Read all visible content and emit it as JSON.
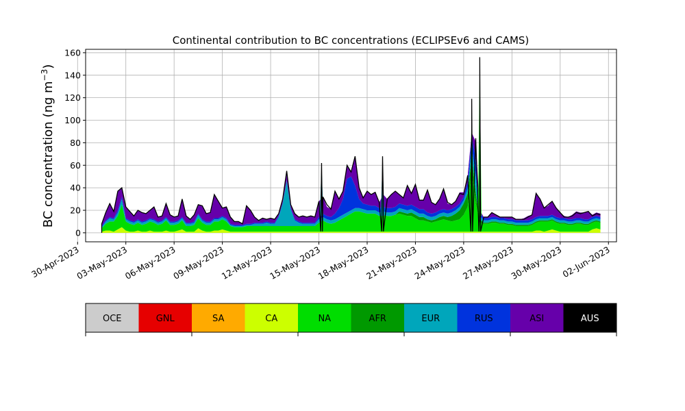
{
  "chart_data": {
    "type": "area",
    "title": "Continental contribution to BC concentrations (ECLIPSEv6 and CAMS)",
    "ylabel_main": "BC concentration (ng m",
    "ylabel_sup": "−3",
    "ylabel_close": ")",
    "xlabel": "",
    "ylim": [
      -8,
      163
    ],
    "xlim": [
      "2023-04-30T12:00",
      "2023-06-02T12:00"
    ],
    "yticks": [
      0,
      20,
      40,
      60,
      80,
      100,
      120,
      140,
      160
    ],
    "xticks": [
      {
        "date": "2023-04-30",
        "label": "30-Apr-2023"
      },
      {
        "date": "2023-05-03",
        "label": "03-May-2023"
      },
      {
        "date": "2023-05-06",
        "label": "06-May-2023"
      },
      {
        "date": "2023-05-09",
        "label": "09-May-2023"
      },
      {
        "date": "2023-05-12",
        "label": "12-May-2023"
      },
      {
        "date": "2023-05-15",
        "label": "15-May-2023"
      },
      {
        "date": "2023-05-18",
        "label": "18-May-2023"
      },
      {
        "date": "2023-05-21",
        "label": "21-May-2023"
      },
      {
        "date": "2023-05-24",
        "label": "24-May-2023"
      },
      {
        "date": "2023-05-27",
        "label": "27-May-2023"
      },
      {
        "date": "2023-05-30",
        "label": "30-May-2023"
      },
      {
        "date": "2023-06-02",
        "label": "02-Jun-2023"
      }
    ],
    "grid": true,
    "legend_position": "below",
    "series_order": [
      "CA",
      "NA",
      "AFR",
      "EUR",
      "RUS",
      "ASI"
    ],
    "total_outline_color": "#000000",
    "x": [
      "2023-05-01T12:00",
      "2023-05-01T18:00",
      "2023-05-02T00:00",
      "2023-05-02T06:00",
      "2023-05-02T12:00",
      "2023-05-02T18:00",
      "2023-05-03T00:00",
      "2023-05-03T06:00",
      "2023-05-03T12:00",
      "2023-05-03T18:00",
      "2023-05-04T00:00",
      "2023-05-04T06:00",
      "2023-05-04T12:00",
      "2023-05-04T18:00",
      "2023-05-05T00:00",
      "2023-05-05T06:00",
      "2023-05-05T12:00",
      "2023-05-05T18:00",
      "2023-05-06T00:00",
      "2023-05-06T06:00",
      "2023-05-06T12:00",
      "2023-05-06T18:00",
      "2023-05-07T00:00",
      "2023-05-07T06:00",
      "2023-05-07T12:00",
      "2023-05-07T18:00",
      "2023-05-08T00:00",
      "2023-05-08T06:00",
      "2023-05-08T12:00",
      "2023-05-08T18:00",
      "2023-05-09T00:00",
      "2023-05-09T06:00",
      "2023-05-09T12:00",
      "2023-05-09T18:00",
      "2023-05-10T00:00",
      "2023-05-10T06:00",
      "2023-05-10T12:00",
      "2023-05-10T18:00",
      "2023-05-11T00:00",
      "2023-05-11T06:00",
      "2023-05-11T12:00",
      "2023-05-11T18:00",
      "2023-05-12T00:00",
      "2023-05-12T06:00",
      "2023-05-12T12:00",
      "2023-05-12T18:00",
      "2023-05-13T00:00",
      "2023-05-13T06:00",
      "2023-05-13T12:00",
      "2023-05-13T18:00",
      "2023-05-14T00:00",
      "2023-05-14T06:00",
      "2023-05-14T12:00",
      "2023-05-14T18:00",
      "2023-05-15T00:00",
      "2023-05-15T06:00",
      "2023-05-15T12:00",
      "2023-05-15T18:00",
      "2023-05-16T00:00",
      "2023-05-16T06:00",
      "2023-05-16T12:00",
      "2023-05-16T18:00",
      "2023-05-17T00:00",
      "2023-05-17T06:00",
      "2023-05-17T12:00",
      "2023-05-17T18:00",
      "2023-05-18T00:00",
      "2023-05-18T06:00",
      "2023-05-18T12:00",
      "2023-05-18T18:00",
      "2023-05-19T00:00",
      "2023-05-19T06:00",
      "2023-05-19T12:00",
      "2023-05-19T18:00",
      "2023-05-20T00:00",
      "2023-05-20T06:00",
      "2023-05-20T12:00",
      "2023-05-20T18:00",
      "2023-05-21T00:00",
      "2023-05-21T06:00",
      "2023-05-21T12:00",
      "2023-05-21T18:00",
      "2023-05-22T00:00",
      "2023-05-22T06:00",
      "2023-05-22T12:00",
      "2023-05-22T18:00",
      "2023-05-23T00:00",
      "2023-05-23T06:00",
      "2023-05-23T12:00",
      "2023-05-23T18:00",
      "2023-05-24T00:00",
      "2023-05-24T06:00",
      "2023-05-24T12:00",
      "2023-05-24T18:00",
      "2023-05-25T00:00",
      "2023-05-25T06:00",
      "2023-05-25T12:00",
      "2023-05-25T18:00",
      "2023-05-26T00:00",
      "2023-05-26T06:00",
      "2023-05-26T12:00",
      "2023-05-26T18:00",
      "2023-05-27T00:00",
      "2023-05-27T06:00",
      "2023-05-27T12:00",
      "2023-05-27T18:00",
      "2023-05-28T00:00",
      "2023-05-28T06:00",
      "2023-05-28T12:00",
      "2023-05-28T18:00",
      "2023-05-29T00:00",
      "2023-05-29T06:00",
      "2023-05-29T12:00",
      "2023-05-29T18:00",
      "2023-05-30T00:00",
      "2023-05-30T06:00",
      "2023-05-30T12:00",
      "2023-05-30T18:00",
      "2023-05-31T00:00",
      "2023-05-31T06:00",
      "2023-05-31T12:00",
      "2023-05-31T18:00",
      "2023-06-01T00:00",
      "2023-06-01T06:00",
      "2023-06-01T12:00"
    ],
    "series": [
      {
        "name": "CA",
        "color": "#ccff00",
        "values": [
          1,
          2,
          2,
          1,
          3,
          5,
          2,
          1,
          1,
          2,
          1,
          1,
          2,
          1,
          1,
          1,
          2,
          1,
          1,
          2,
          3,
          1,
          1,
          1,
          4,
          2,
          1,
          1,
          2,
          2,
          3,
          2,
          1,
          1,
          1,
          1,
          1,
          1,
          1,
          1,
          1,
          1,
          1,
          1,
          1,
          1,
          1,
          1,
          1,
          1,
          1,
          1,
          1,
          1,
          1,
          1,
          1,
          1,
          1,
          1,
          1,
          1,
          1,
          1,
          1,
          1,
          1,
          1,
          1,
          1,
          1,
          1,
          1,
          1,
          1,
          1,
          1,
          1,
          1,
          1,
          1,
          1,
          1,
          1,
          1,
          1,
          1,
          1,
          1,
          1,
          1,
          1,
          1,
          1,
          1,
          1,
          1,
          1,
          1,
          1,
          1,
          1,
          1,
          1,
          1,
          1,
          1,
          1,
          2,
          2,
          1,
          2,
          3,
          2,
          1,
          1,
          1,
          1,
          1,
          1,
          1,
          1,
          3,
          4,
          3
        ]
      },
      {
        "name": "NA",
        "color": "#00dd00",
        "values": [
          3,
          6,
          8,
          9,
          12,
          20,
          8,
          7,
          6,
          7,
          6,
          7,
          8,
          8,
          6,
          7,
          9,
          6,
          6,
          6,
          8,
          5,
          5,
          6,
          9,
          7,
          6,
          6,
          8,
          8,
          9,
          8,
          5,
          4,
          4,
          4,
          5,
          5,
          5,
          5,
          5,
          5,
          5,
          5,
          5,
          5,
          5,
          5,
          5,
          5,
          5,
          5,
          5,
          5,
          8,
          10,
          8,
          7,
          8,
          10,
          12,
          14,
          16,
          18,
          18,
          17,
          16,
          16,
          16,
          14,
          15,
          14,
          14,
          15,
          16,
          15,
          14,
          14,
          12,
          10,
          10,
          9,
          8,
          9,
          10,
          11,
          10,
          9,
          10,
          11,
          15,
          22,
          55,
          25,
          8,
          7,
          7,
          8,
          8,
          7,
          7,
          6,
          6,
          5,
          5,
          5,
          5,
          6,
          7,
          8,
          9,
          8,
          8,
          7,
          7,
          7,
          6,
          6,
          7,
          7,
          6,
          6,
          6,
          6,
          6
        ]
      },
      {
        "name": "AFR",
        "color": "#009900",
        "values": [
          0,
          0,
          0,
          0,
          0,
          0,
          0,
          0,
          0,
          0,
          0,
          0,
          0,
          0,
          0,
          0,
          0,
          0,
          0,
          0,
          0,
          0,
          0,
          0,
          0,
          0,
          0,
          0,
          0,
          0,
          0,
          0,
          0,
          0,
          0,
          0,
          0,
          0,
          0,
          0,
          0,
          0,
          0,
          0,
          0,
          0,
          0,
          0,
          0,
          0,
          0,
          0,
          0,
          0,
          0,
          0,
          0,
          0,
          0,
          0,
          0,
          0,
          0,
          0,
          0,
          0,
          0,
          0,
          0,
          0,
          0,
          0,
          0,
          0,
          2,
          2,
          2,
          3,
          3,
          3,
          3,
          2,
          2,
          2,
          3,
          3,
          3,
          5,
          6,
          8,
          10,
          12,
          12,
          10,
          3,
          1,
          1,
          1,
          1,
          1,
          1,
          1,
          1,
          1,
          1,
          1,
          1,
          1,
          1,
          1,
          1,
          1,
          1,
          1,
          1,
          1,
          1,
          1,
          1,
          1,
          1,
          1,
          1,
          1,
          1
        ]
      },
      {
        "name": "EUR",
        "color": "#00a6bb",
        "values": [
          1,
          2,
          3,
          2,
          3,
          5,
          2,
          2,
          2,
          2,
          2,
          2,
          2,
          2,
          2,
          2,
          2,
          2,
          2,
          2,
          2,
          2,
          2,
          2,
          3,
          2,
          2,
          2,
          2,
          2,
          2,
          2,
          1,
          1,
          1,
          1,
          1,
          1,
          2,
          2,
          2,
          3,
          2,
          2,
          8,
          20,
          40,
          15,
          5,
          3,
          2,
          2,
          2,
          2,
          3,
          3,
          3,
          3,
          3,
          3,
          3,
          3,
          3,
          3,
          3,
          3,
          3,
          3,
          3,
          3,
          3,
          3,
          3,
          3,
          3,
          3,
          3,
          3,
          3,
          3,
          3,
          3,
          3,
          3,
          3,
          3,
          3,
          3,
          3,
          3,
          3,
          5,
          8,
          15,
          3,
          2,
          2,
          2,
          2,
          2,
          2,
          2,
          2,
          2,
          2,
          2,
          2,
          2,
          2,
          2,
          2,
          2,
          2,
          2,
          2,
          2,
          2,
          2,
          2,
          2,
          2,
          2,
          2,
          2,
          2
        ]
      },
      {
        "name": "RUS",
        "color": "#0033dd",
        "values": [
          1,
          1,
          1,
          1,
          2,
          2,
          1,
          1,
          1,
          1,
          1,
          1,
          1,
          1,
          1,
          1,
          1,
          1,
          1,
          1,
          1,
          1,
          1,
          1,
          1,
          1,
          1,
          1,
          1,
          1,
          1,
          1,
          1,
          1,
          1,
          1,
          1,
          1,
          1,
          1,
          1,
          1,
          1,
          1,
          1,
          1,
          1,
          1,
          1,
          1,
          1,
          1,
          1,
          1,
          2,
          3,
          3,
          3,
          5,
          8,
          14,
          30,
          30,
          20,
          8,
          5,
          5,
          4,
          4,
          4,
          4,
          4,
          4,
          4,
          4,
          4,
          4,
          4,
          4,
          4,
          4,
          3,
          3,
          3,
          3,
          3,
          3,
          3,
          3,
          3,
          3,
          5,
          10,
          15,
          3,
          2,
          2,
          2,
          2,
          2,
          2,
          2,
          2,
          2,
          2,
          2,
          2,
          2,
          2,
          2,
          2,
          2,
          2,
          2,
          2,
          2,
          2,
          2,
          2,
          2,
          2,
          2,
          2,
          2,
          2
        ]
      },
      {
        "name": "ASI",
        "color": "#6600aa",
        "values": [
          2,
          7,
          12,
          6,
          17,
          8,
          10,
          8,
          5,
          8,
          8,
          6,
          7,
          11,
          4,
          4,
          12,
          6,
          4,
          4,
          16,
          6,
          3,
          6,
          8,
          12,
          7,
          8,
          21,
          15,
          7,
          10,
          6,
          3,
          3,
          1,
          16,
          12,
          5,
          2,
          4,
          2,
          4,
          3,
          2,
          3,
          7,
          3,
          5,
          4,
          6,
          5,
          6,
          5,
          14,
          15,
          8,
          7,
          20,
          8,
          7,
          12,
          4,
          26,
          10,
          5,
          12,
          10,
          12,
          5,
          11,
          8,
          12,
          14,
          8,
          6,
          18,
          10,
          20,
          8,
          8,
          20,
          10,
          7,
          10,
          18,
          6,
          4,
          5,
          10,
          4,
          6,
          3,
          15,
          2,
          1,
          1,
          4,
          2,
          1,
          1,
          2,
          2,
          1,
          1,
          2,
          4,
          4,
          22,
          15,
          7,
          9,
          12,
          8,
          5,
          2,
          2,
          4,
          6,
          5,
          6,
          7,
          2,
          3,
          3
        ]
      }
    ],
    "total": [
      8,
      18,
      26,
      19,
      37,
      40,
      23,
      19,
      15,
      20,
      18,
      17,
      20,
      23,
      14,
      15,
      26,
      16,
      14,
      15,
      30,
      15,
      12,
      16,
      25,
      24,
      17,
      18,
      34,
      28,
      22,
      23,
      14,
      10,
      10,
      8,
      24,
      20,
      14,
      11,
      13,
      12,
      13,
      12,
      17,
      30,
      55,
      25,
      17,
      14,
      15,
      14,
      15,
      14,
      28,
      32,
      25,
      21,
      37,
      30,
      37,
      60,
      54,
      68,
      40,
      31,
      37,
      34,
      36,
      27,
      34,
      30,
      34,
      37,
      34,
      31,
      42,
      35,
      43,
      29,
      29,
      38,
      27,
      25,
      30,
      39,
      27,
      25,
      28,
      35,
      34,
      51,
      89,
      84,
      20,
      14,
      14,
      18,
      16,
      14,
      14,
      14,
      14,
      12,
      12,
      12,
      14,
      16,
      35,
      30,
      22,
      25,
      28,
      22,
      18,
      14,
      14,
      15,
      18,
      17,
      18,
      19,
      15,
      17,
      16
    ],
    "spikes": [
      {
        "x": "2023-05-15T04:00",
        "value": 62
      },
      {
        "x": "2023-05-18T23:00",
        "value": 68
      },
      {
        "x": "2023-05-24T12:00",
        "value": 119
      },
      {
        "x": "2023-05-25T00:00",
        "value": 156
      }
    ]
  },
  "legend": [
    {
      "label": "OCE",
      "color": "#cccccc",
      "text_color": "#000000"
    },
    {
      "label": "GNL",
      "color": "#e60000",
      "text_color": "#000000"
    },
    {
      "label": "SA",
      "color": "#ffaa00",
      "text_color": "#000000"
    },
    {
      "label": "CA",
      "color": "#ccff00",
      "text_color": "#000000"
    },
    {
      "label": "NA",
      "color": "#00dd00",
      "text_color": "#000000"
    },
    {
      "label": "AFR",
      "color": "#009900",
      "text_color": "#000000"
    },
    {
      "label": "EUR",
      "color": "#00a6bb",
      "text_color": "#000000"
    },
    {
      "label": "RUS",
      "color": "#0033dd",
      "text_color": "#000000"
    },
    {
      "label": "ASI",
      "color": "#6600aa",
      "text_color": "#000000"
    },
    {
      "label": "AUS",
      "color": "#000000",
      "text_color": "#ffffff"
    }
  ]
}
